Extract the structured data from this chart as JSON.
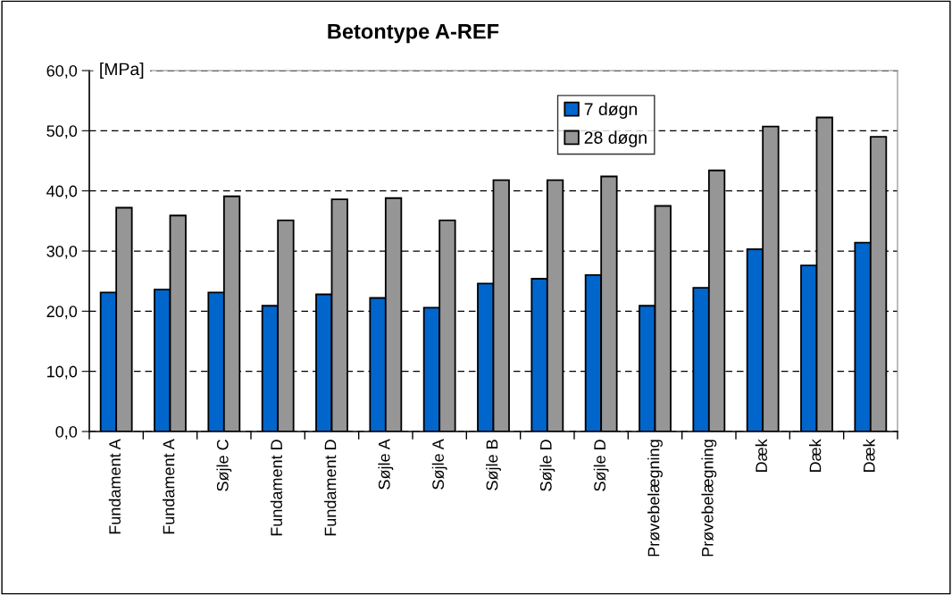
{
  "chart_data": {
    "type": "bar",
    "title": "Betontype A-REF",
    "ylabel": "[MPa]",
    "categories": [
      "Fundament A",
      "Fundament A",
      "Søjle C",
      "Fundament D",
      "Fundament D",
      "Søjle A",
      "Søjle A",
      "Søjle B",
      "Søjle D",
      "Søjle D",
      "Prøvebelægning",
      "Prøvebelægning",
      "Dæk",
      "Dæk",
      "Dæk"
    ],
    "series": [
      {
        "name": "7 døgn",
        "color": "#0066cc",
        "values": [
          23.1,
          23.6,
          23.1,
          20.9,
          22.8,
          22.2,
          20.6,
          24.6,
          25.4,
          26.0,
          20.9,
          23.9,
          30.3,
          27.6,
          31.4
        ]
      },
      {
        "name": "28 døgn",
        "color": "#969696",
        "values": [
          37.2,
          35.9,
          39.1,
          35.1,
          38.6,
          38.8,
          35.1,
          41.8,
          41.8,
          42.4,
          37.5,
          43.4,
          50.7,
          52.2,
          49.0
        ]
      }
    ],
    "ylim": [
      0,
      60
    ],
    "yticks": [
      {
        "value": 0,
        "label": "0,0"
      },
      {
        "value": 10,
        "label": "10,0"
      },
      {
        "value": 20,
        "label": "20,0"
      },
      {
        "value": 30,
        "label": "30,0"
      },
      {
        "value": 40,
        "label": "40,0"
      },
      {
        "value": 50,
        "label": "50,0"
      },
      {
        "value": 60,
        "label": "60,0"
      }
    ],
    "grid": "y",
    "legend": "top right"
  }
}
